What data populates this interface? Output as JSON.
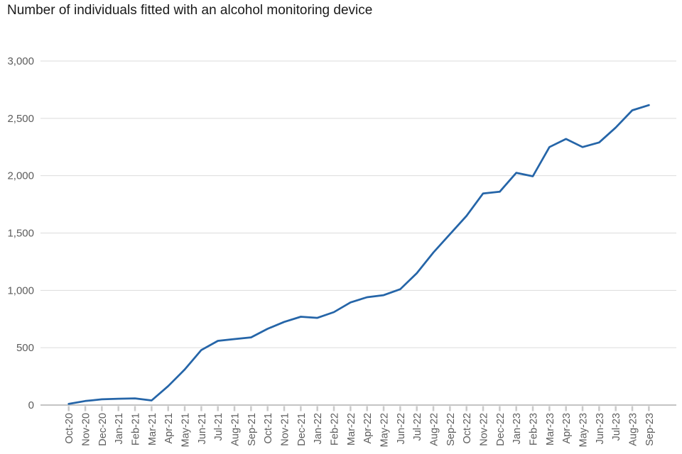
{
  "chart_data": {
    "type": "line",
    "title": "Number of individuals fitted with an alcohol monitoring device",
    "x": [
      "Oct-20",
      "Nov-20",
      "Dec-20",
      "Jan-21",
      "Feb-21",
      "Mar-21",
      "Apr-21",
      "May-21",
      "Jun-21",
      "Jul-21",
      "Aug-21",
      "Sep-21",
      "Oct-21",
      "Nov-21",
      "Dec-21",
      "Jan-22",
      "Feb-22",
      "Mar-22",
      "Apr-22",
      "May-22",
      "Jun-22",
      "Jul-22",
      "Aug-22",
      "Sep-22",
      "Oct-22",
      "Nov-22",
      "Dec-22",
      "Jan-23",
      "Feb-23",
      "Mar-23",
      "Apr-23",
      "May-23",
      "Jun-23",
      "Jul-23",
      "Aug-23",
      "Sep-23"
    ],
    "values": [
      10,
      35,
      50,
      55,
      58,
      40,
      165,
      310,
      480,
      560,
      575,
      590,
      665,
      725,
      770,
      760,
      810,
      895,
      940,
      958,
      1010,
      1150,
      1330,
      1490,
      1650,
      1845,
      1860,
      2025,
      1995,
      2250,
      2320,
      2250,
      2290,
      2420,
      2570,
      2615
    ],
    "xlabel": "",
    "ylabel": "",
    "ylim": [
      0,
      3000
    ],
    "yticks": [
      0,
      500,
      1000,
      1500,
      2000,
      2500,
      3000
    ],
    "ytick_labels": [
      "0",
      "500",
      "1,000",
      "1,500",
      "2,000",
      "2,500",
      "3,000"
    ],
    "grid": "horizontal gridlines on",
    "legend": "none",
    "line_color": "#2565a8",
    "axis_label_color": "#5c5c5c",
    "gridline_color": "#dbdbdb",
    "baseline_color": "#c4c4c4",
    "tick_color": "#c9c9c9"
  }
}
